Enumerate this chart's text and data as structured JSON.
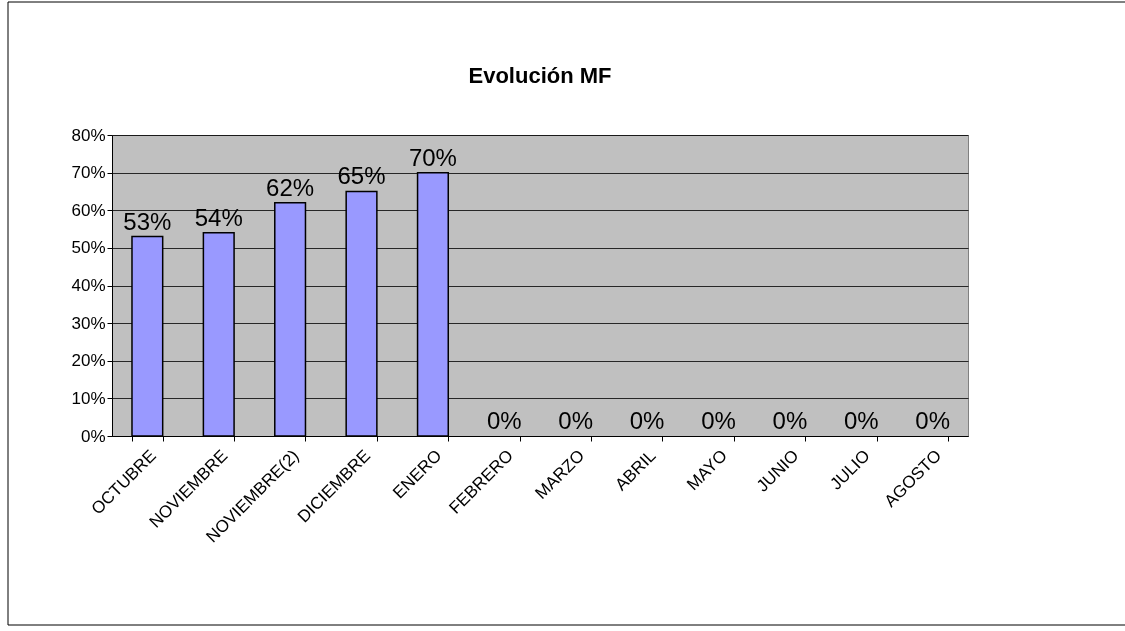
{
  "chart_data": {
    "type": "bar",
    "title": "Evolución MF",
    "categories": [
      "OCTUBRE",
      "NOVIEMBRE",
      "NOVIEMBRE(2)",
      "DICIEMBRE",
      "ENERO",
      "FEBRERO",
      "MARZO",
      "ABRIL",
      "MAYO",
      "JUNIO",
      "JULIO",
      "AGOSTO"
    ],
    "values": [
      53,
      54,
      62,
      65,
      70,
      0,
      0,
      0,
      0,
      0,
      0,
      0
    ],
    "value_labels": [
      "53%",
      "54%",
      "62%",
      "65%",
      "70%",
      "0%",
      "0%",
      "0%",
      "0%",
      "0%",
      "0%",
      "0%"
    ],
    "color": "#9999ff",
    "ylim": [
      0,
      80
    ],
    "yticks": [
      {
        "value": 0,
        "label": "0%"
      },
      {
        "value": 10,
        "label": "10%"
      },
      {
        "value": 20,
        "label": "20%"
      },
      {
        "value": 30,
        "label": "30%"
      },
      {
        "value": 40,
        "label": "40%"
      },
      {
        "value": 50,
        "label": "50%"
      },
      {
        "value": 60,
        "label": "60%"
      },
      {
        "value": 70,
        "label": "70%"
      },
      {
        "value": 80,
        "label": "80%"
      }
    ],
    "grid": "y"
  }
}
